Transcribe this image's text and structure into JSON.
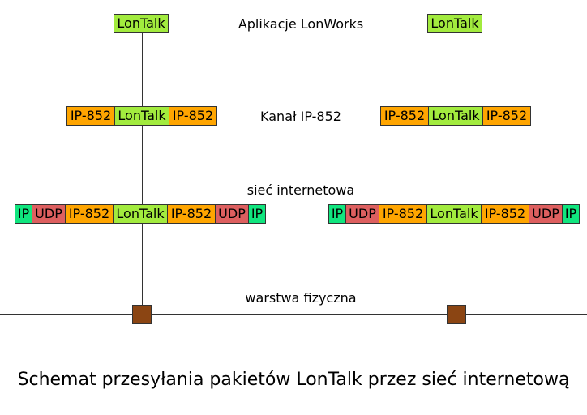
{
  "labels": {
    "applications": "Aplikacje LonWorks",
    "channel": "Kanał IP-852",
    "internet": "sieć internetowa",
    "physical": "warstwa fizyczna"
  },
  "caption": "Schemat przesyłania pakietów LonTalk przez sieć internetową",
  "blocks": {
    "lontalk": "LonTalk",
    "ip852": "IP-852",
    "udp": "UDP",
    "ip": "IP"
  },
  "colors": {
    "lontalk": "#a2eb3e",
    "ip852": "#ffa500",
    "udp": "#dd5f5f",
    "ip": "#10e57e",
    "node": "#8b4513"
  }
}
